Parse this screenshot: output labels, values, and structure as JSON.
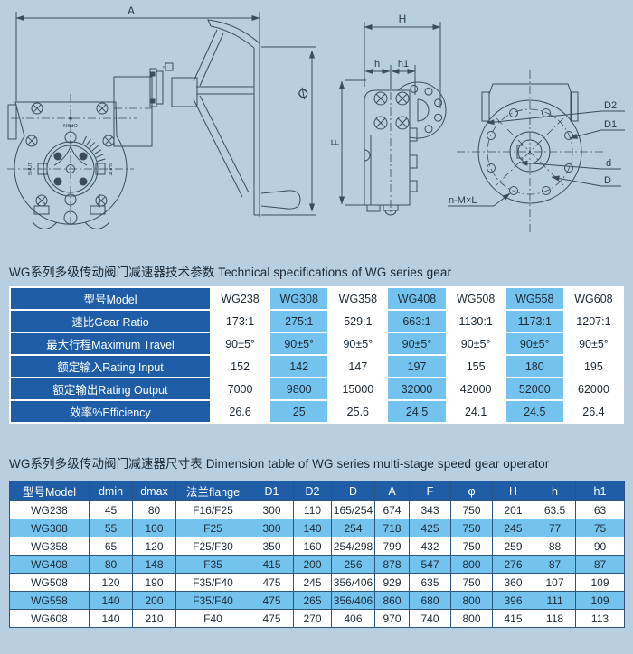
{
  "colors": {
    "background": "#b7cfe0",
    "line": "#3b4c5c",
    "header_blue": "#1f5ea7",
    "cell_blue": "#74c3ee",
    "cell_text": "#1d2a36",
    "title_text": "#1c2834"
  },
  "drawing": {
    "labels": {
      "dim_a": "A",
      "dim_phi": "Ø",
      "open": "OPEN",
      "shut_left": "SHUT",
      "shut_right": "SHUT",
      "dim_h": "H",
      "dim_h_small": "h",
      "dim_h1": "h1",
      "dim_f": "F",
      "dim_d2": "D2",
      "dim_d1": "D1",
      "dim_d_small": "d",
      "dim_d": "D",
      "bolt_note": "n-M×L"
    }
  },
  "spec_section": {
    "title": "WG系列多级传动阀门减速器技术参数 Technical specifications of WG series gear",
    "table": {
      "rows": [
        {
          "label": "型号Model",
          "values": [
            "WG238",
            "WG308",
            "WG358",
            "WG408",
            "WG508",
            "WG558",
            "WG608"
          ]
        },
        {
          "label": "速比Gear Ratio",
          "values": [
            "173:1",
            "275:1",
            "529:1",
            "663:1",
            "1130:1",
            "1173:1",
            "1207:1"
          ]
        },
        {
          "label": "最大行程Maximum Travel",
          "values": [
            "90±5°",
            "90±5°",
            "90±5°",
            "90±5°",
            "90±5°",
            "90±5°",
            "90±5°"
          ]
        },
        {
          "label": "额定输入Rating Input",
          "values": [
            "152",
            "142",
            "147",
            "197",
            "155",
            "180",
            "195"
          ]
        },
        {
          "label": "额定输出Rating Output",
          "values": [
            "7000",
            "9800",
            "15000",
            "32000",
            "42000",
            "52000",
            "62000"
          ]
        },
        {
          "label": "效率%Efficiency",
          "values": [
            "26.6",
            "25",
            "25.6",
            "24.5",
            "24.1",
            "24.5",
            "26.4"
          ]
        }
      ]
    }
  },
  "dimension_section": {
    "title": "WG系列多级传动阀门减速器尺寸表 Dimension table of WG series multi-stage speed gear operator",
    "table": {
      "headers": [
        "型号Model",
        "dmin",
        "dmax",
        "法兰flange",
        "D1",
        "D2",
        "D",
        "A",
        "F",
        "φ",
        "H",
        "h",
        "h1"
      ],
      "rows": [
        [
          "WG238",
          "45",
          "80",
          "F16/F25",
          "300",
          "110",
          "165/254",
          "674",
          "343",
          "750",
          "201",
          "63.5",
          "63"
        ],
        [
          "WG308",
          "55",
          "100",
          "F25",
          "300",
          "140",
          "254",
          "718",
          "425",
          "750",
          "245",
          "77",
          "75"
        ],
        [
          "WG358",
          "65",
          "120",
          "F25/F30",
          "350",
          "160",
          "254/298",
          "799",
          "432",
          "750",
          "259",
          "88",
          "90"
        ],
        [
          "WG408",
          "80",
          "148",
          "F35",
          "415",
          "200",
          "256",
          "878",
          "547",
          "800",
          "276",
          "87",
          "87"
        ],
        [
          "WG508",
          "120",
          "190",
          "F35/F40",
          "475",
          "245",
          "356/406",
          "929",
          "635",
          "750",
          "360",
          "107",
          "109"
        ],
        [
          "WG558",
          "140",
          "200",
          "F35/F40",
          "475",
          "265",
          "356/406",
          "860",
          "680",
          "800",
          "396",
          "111",
          "109"
        ],
        [
          "WG608",
          "140",
          "210",
          "F40",
          "475",
          "270",
          "406",
          "970",
          "740",
          "800",
          "415",
          "118",
          "113"
        ]
      ]
    }
  }
}
